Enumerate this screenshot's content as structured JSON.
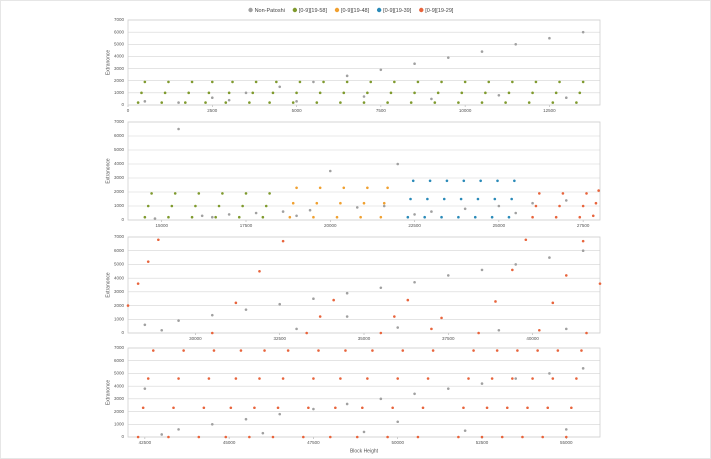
{
  "chart_data": [
    {
      "type": "scatter",
      "y_label": "Extranonce",
      "xlim": [
        0,
        14000
      ],
      "ylim": [
        0,
        7000
      ],
      "xticks": [
        0,
        2500,
        5000,
        7500,
        10000,
        12500
      ],
      "yticks": [
        0,
        1000,
        2000,
        3000,
        4000,
        5000,
        6000,
        7000
      ],
      "grid": true,
      "series": [
        {
          "name": "Non-Patoshi",
          "color": "#a0a0a0",
          "x": [
            500,
            1500,
            2500,
            3500,
            4500,
            5500,
            6500,
            7500,
            8500,
            9500,
            10500,
            11500,
            12500,
            13500,
            3000,
            5000,
            7000,
            9000,
            11000,
            13000
          ],
          "values": [
            300,
            200,
            600,
            1000,
            1500,
            1900,
            2400,
            2900,
            3400,
            3900,
            4400,
            5000,
            5500,
            6000,
            400,
            300,
            700,
            500,
            800,
            600
          ]
        },
        {
          "name": "[0-9][19-58]",
          "color": "#7f9a2e",
          "x": [
            300,
            400,
            500,
            1000,
            1100,
            1200,
            1700,
            1800,
            1900,
            2300,
            2400,
            2500,
            2900,
            3000,
            3100,
            3600,
            3700,
            3800,
            4200,
            4300,
            4400,
            4900,
            5000,
            5100,
            5600,
            5700,
            5800,
            6300,
            6400,
            6500,
            7000,
            7100,
            7200,
            7700,
            7800,
            7900,
            8400,
            8500,
            8600,
            9100,
            9200,
            9300,
            9800,
            9900,
            10000,
            10500,
            10600,
            10700,
            11200,
            11300,
            11400,
            11900,
            12000,
            12100,
            12600,
            12700,
            12800,
            13300,
            13400,
            13500
          ],
          "values": [
            200,
            1000,
            1900,
            200,
            1000,
            1900,
            200,
            1000,
            1900,
            200,
            1000,
            1900,
            200,
            1000,
            1900,
            200,
            1000,
            1900,
            200,
            1000,
            1900,
            200,
            1000,
            1900,
            200,
            1000,
            1900,
            200,
            1000,
            1900,
            200,
            1000,
            1900,
            200,
            1000,
            1900,
            200,
            1000,
            1900,
            200,
            1000,
            1900,
            200,
            1000,
            1900,
            200,
            1000,
            1900,
            200,
            1000,
            1900,
            200,
            1000,
            1900,
            200,
            1000,
            1900,
            200,
            1000,
            1900
          ]
        }
      ]
    },
    {
      "type": "scatter",
      "y_label": "Extranonce",
      "xlim": [
        14000,
        28000
      ],
      "ylim": [
        0,
        7000
      ],
      "xticks": [
        15000,
        17500,
        20000,
        22500,
        25000,
        27500
      ],
      "yticks": [
        0,
        1000,
        2000,
        3000,
        4000,
        5000,
        6000,
        7000
      ],
      "grid": true,
      "series": [
        {
          "name": "Non-Patoshi",
          "color": "#a0a0a0",
          "x": [
            14800,
            15500,
            16200,
            17000,
            17800,
            18600,
            19400,
            20000,
            20800,
            21600,
            22000,
            23000,
            24000,
            25000,
            26000,
            27000,
            16500,
            19000,
            22500,
            25500
          ],
          "values": [
            100,
            6500,
            300,
            400,
            500,
            600,
            700,
            3500,
            900,
            1000,
            4000,
            600,
            800,
            1000,
            1200,
            1400,
            200,
            300,
            400,
            500
          ]
        },
        {
          "name": "[0-9][19-58]",
          "color": "#7f9a2e",
          "x": [
            14500,
            14600,
            14700,
            15200,
            15300,
            15400,
            15900,
            16000,
            16100,
            16600,
            16700,
            16800,
            17300,
            17400,
            17500,
            18000,
            18100,
            18200
          ],
          "values": [
            200,
            1000,
            1900,
            200,
            1000,
            1900,
            200,
            1000,
            1900,
            200,
            1000,
            1900,
            200,
            1000,
            1900,
            200,
            1000,
            1900
          ]
        },
        {
          "name": "[0-9][19-48]",
          "color": "#f0a030",
          "x": [
            18800,
            18900,
            19000,
            19500,
            19600,
            19700,
            20200,
            20300,
            20400,
            20900,
            21000,
            21100,
            21500,
            21600,
            21700
          ],
          "values": [
            200,
            1200,
            2300,
            200,
            1200,
            2300,
            200,
            1200,
            2300,
            200,
            1200,
            2300,
            200,
            1200,
            2300
          ]
        },
        {
          "name": "[0-9][19-39]",
          "color": "#2a8ab8",
          "x": [
            22300,
            22380,
            22460,
            22800,
            22880,
            22960,
            23300,
            23380,
            23460,
            23800,
            23880,
            23960,
            24300,
            24380,
            24460,
            24800,
            24880,
            24960,
            25300,
            25380,
            25460
          ],
          "values": [
            200,
            1500,
            2800,
            200,
            1500,
            2800,
            200,
            1500,
            2800,
            200,
            1500,
            2800,
            200,
            1500,
            2800,
            200,
            1500,
            2800,
            200,
            1500,
            2800
          ]
        },
        {
          "name": "[0-9][19-29]",
          "color": "#e8643c",
          "x": [
            26000,
            26100,
            26200,
            26700,
            26800,
            26900,
            27400,
            27500,
            27600,
            27800,
            27880,
            27960
          ],
          "values": [
            200,
            1000,
            1900,
            200,
            1000,
            1900,
            200,
            1000,
            1900,
            300,
            1200,
            2100
          ]
        }
      ]
    },
    {
      "type": "scatter",
      "y_label": "Extranonce",
      "xlim": [
        28000,
        42000
      ],
      "ylim": [
        0,
        7000
      ],
      "xticks": [
        30000,
        32500,
        35000,
        37500,
        40000
      ],
      "yticks": [
        0,
        1000,
        2000,
        3000,
        4000,
        5000,
        6000,
        7000
      ],
      "grid": true,
      "series": [
        {
          "name": "Non-Patoshi",
          "color": "#a0a0a0",
          "x": [
            28500,
            29500,
            30500,
            31500,
            32500,
            33500,
            34500,
            35500,
            36500,
            37500,
            38500,
            39500,
            40500,
            41500,
            29000,
            33000,
            36000,
            39000,
            41000,
            34500
          ],
          "values": [
            600,
            900,
            1300,
            1700,
            2100,
            2500,
            2900,
            3300,
            3700,
            4200,
            4600,
            5000,
            5500,
            6000,
            200,
            300,
            400,
            200,
            300,
            1200
          ]
        },
        {
          "name": "[0-9][19-29]",
          "color": "#e8643c",
          "x": [
            28000,
            28300,
            28600,
            28900,
            30500,
            31200,
            31900,
            32600,
            33300,
            33700,
            34100,
            35500,
            35900,
            36300,
            37000,
            37300,
            38400,
            38900,
            39400,
            39800,
            40200,
            40600,
            41000,
            41500,
            41600,
            42000
          ],
          "values": [
            2000,
            3600,
            5200,
            6800,
            0,
            2200,
            4500,
            6700,
            0,
            1200,
            2400,
            0,
            1200,
            2400,
            300,
            1100,
            0,
            2300,
            4600,
            6800,
            200,
            2200,
            4200,
            6700,
            0,
            3600
          ]
        }
      ]
    },
    {
      "type": "scatter",
      "y_label": "Extranonce",
      "x_label": "Block Height",
      "xlim": [
        42000,
        56000
      ],
      "ylim": [
        0,
        7000
      ],
      "xticks": [
        42500,
        45000,
        47500,
        50000,
        52500,
        55000
      ],
      "yticks": [
        0,
        1000,
        2000,
        3000,
        4000,
        5000,
        6000,
        7000
      ],
      "grid": true,
      "series": [
        {
          "name": "Non-Patoshi",
          "color": "#a0a0a0",
          "x": [
            42500,
            43500,
            44500,
            45500,
            46500,
            47500,
            48500,
            49500,
            50500,
            51500,
            52500,
            53500,
            54500,
            55500,
            43000,
            46000,
            49000,
            52000,
            55000,
            50000
          ],
          "values": [
            3800,
            600,
            1000,
            1400,
            1800,
            2200,
            2600,
            3000,
            3400,
            3800,
            4200,
            4600,
            5000,
            5400,
            200,
            300,
            400,
            500,
            600,
            1200
          ]
        },
        {
          "name": "[0-9][19-29]",
          "color": "#e8643c",
          "x": [
            42300,
            42450,
            42600,
            42750,
            43200,
            43350,
            43500,
            43650,
            44100,
            44250,
            44400,
            44550,
            44900,
            45050,
            45200,
            45350,
            45600,
            45750,
            45900,
            46050,
            46300,
            46450,
            46600,
            46750,
            47200,
            47350,
            47500,
            47650,
            48000,
            48150,
            48300,
            48450,
            48800,
            48950,
            49100,
            49250,
            49700,
            49850,
            50000,
            50150,
            50600,
            50750,
            50900,
            51050,
            51800,
            51950,
            52100,
            52250,
            52500,
            52650,
            52800,
            52950,
            53100,
            53250,
            53400,
            53550,
            53700,
            53850,
            54000,
            54150,
            54300,
            54450,
            54600,
            54750,
            55000,
            55150,
            55300,
            55450
          ],
          "values": [
            0,
            2300,
            4600,
            6800,
            0,
            2300,
            4600,
            6800,
            0,
            2300,
            4600,
            6800,
            0,
            2300,
            4600,
            6800,
            0,
            2300,
            4600,
            6800,
            0,
            2300,
            4600,
            6800,
            0,
            2300,
            4600,
            6800,
            0,
            2300,
            4600,
            6800,
            0,
            2300,
            4600,
            6800,
            0,
            2300,
            4600,
            6800,
            0,
            2300,
            4600,
            6800,
            0,
            2300,
            4600,
            6800,
            0,
            2300,
            4600,
            6800,
            0,
            2300,
            4600,
            6800,
            0,
            2300,
            4600,
            6800,
            0,
            2300,
            4600,
            6800,
            0,
            2300,
            4600,
            6800
          ]
        }
      ]
    }
  ]
}
